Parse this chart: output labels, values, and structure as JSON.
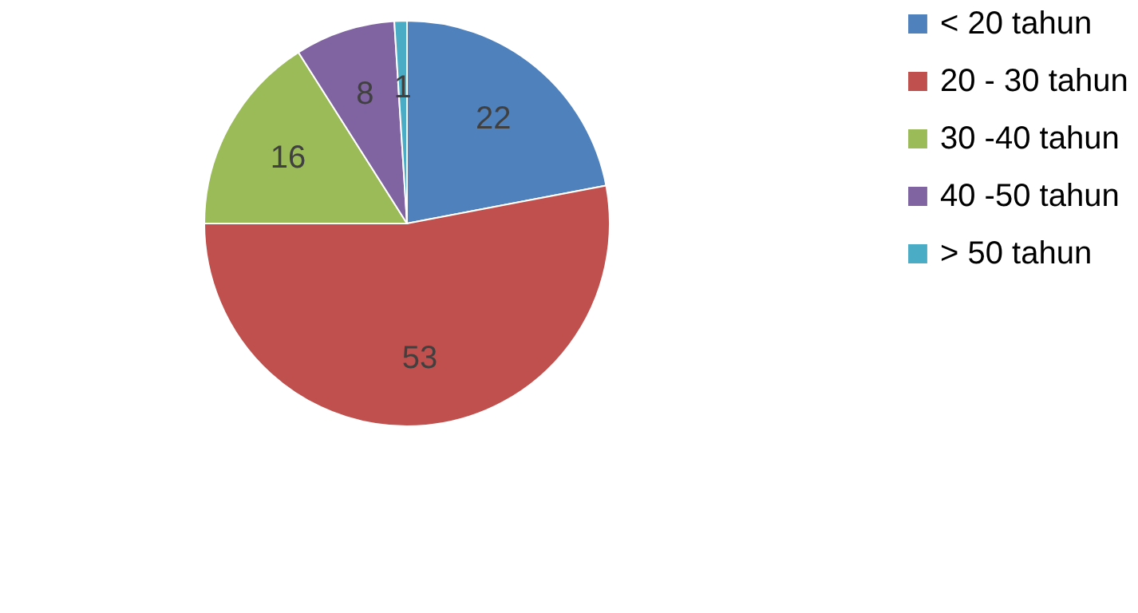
{
  "chart_data": {
    "type": "pie",
    "categories": [
      "< 20 tahun",
      "20 - 30 tahun",
      "30 -40 tahun",
      "40 -50 tahun",
      "> 50 tahun"
    ],
    "values": [
      22,
      53,
      16,
      8,
      1
    ],
    "colors": [
      "#4f81bd",
      "#c0504d",
      "#9bbb59",
      "#8064a2",
      "#4bacc6"
    ],
    "data_labels": true,
    "legend": "right"
  }
}
